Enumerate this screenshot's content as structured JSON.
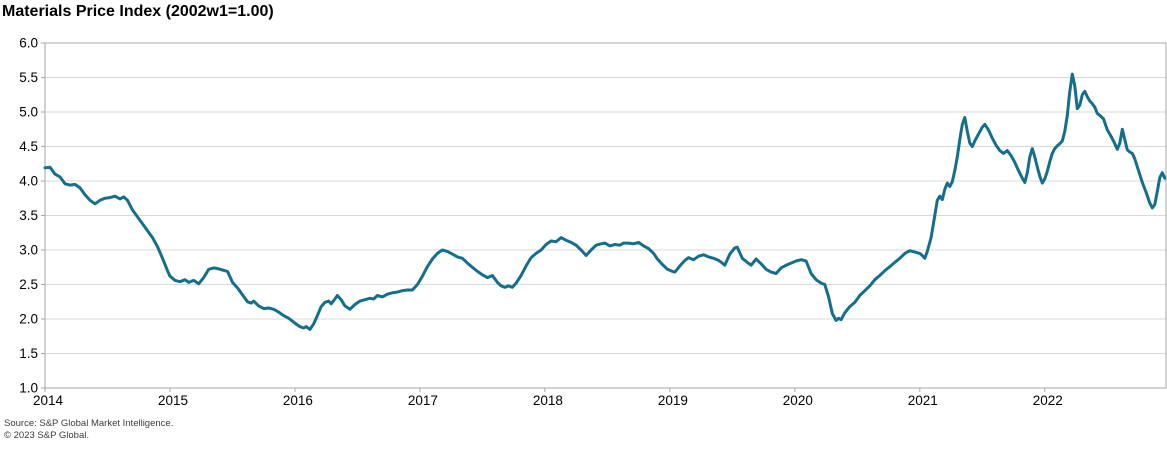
{
  "header": {
    "title": "Materials Price Index (2002w1=1.00)"
  },
  "footer": {
    "source": "Source: S&P Global Market Intelligence.",
    "copyright": "© 2023 S&P Global."
  },
  "colors": {
    "line": "#146e8c",
    "gridline": "#d9d9d9",
    "frame": "#a6a6a6",
    "tick_label": "#000000",
    "title": "#000000",
    "footnote": "#3d3d3d",
    "background": "#ffffff"
  },
  "chart_data": {
    "type": "line",
    "title": "Materials Price Index (2002w1=1.00)",
    "xlabel": "",
    "ylabel": "",
    "xlim": [
      2014.0,
      2022.97
    ],
    "ylim": [
      1.0,
      6.0
    ],
    "grid": "horizontal",
    "legend": "none",
    "x_ticks": [
      "2014",
      "2015",
      "2016",
      "2017",
      "2018",
      "2019",
      "2020",
      "2021",
      "2022"
    ],
    "x_tick_values": [
      2014,
      2015,
      2016,
      2017,
      2018,
      2019,
      2020,
      2021,
      2022
    ],
    "y_ticks": [
      "1.0",
      "1.5",
      "2.0",
      "2.5",
      "3.0",
      "3.5",
      "4.0",
      "4.5",
      "5.0",
      "5.5",
      "6.0"
    ],
    "y_tick_values": [
      1.0,
      1.5,
      2.0,
      2.5,
      3.0,
      3.5,
      4.0,
      4.5,
      5.0,
      5.5,
      6.0
    ],
    "series": [
      {
        "name": "Materials Price Index (2002w1=1.00)",
        "x": [
          2014.0,
          2014.04,
          2014.08,
          2014.12,
          2014.16,
          2014.2,
          2014.24,
          2014.28,
          2014.32,
          2014.36,
          2014.4,
          2014.44,
          2014.48,
          2014.52,
          2014.56,
          2014.6,
          2014.63,
          2014.66,
          2014.7,
          2014.74,
          2014.78,
          2014.82,
          2014.86,
          2014.9,
          2014.94,
          2014.98,
          2015.0,
          2015.04,
          2015.08,
          2015.12,
          2015.15,
          2015.19,
          2015.23,
          2015.27,
          2015.31,
          2015.35,
          2015.38,
          2015.42,
          2015.46,
          2015.5,
          2015.54,
          2015.58,
          2015.62,
          2015.65,
          2015.67,
          2015.71,
          2015.75,
          2015.79,
          2015.83,
          2015.87,
          2015.91,
          2015.95,
          2016.0,
          2016.04,
          2016.07,
          2016.09,
          2016.12,
          2016.15,
          2016.18,
          2016.21,
          2016.24,
          2016.27,
          2016.29,
          2016.32,
          2016.34,
          2016.37,
          2016.4,
          2016.44,
          2016.48,
          2016.52,
          2016.56,
          2016.6,
          2016.63,
          2016.66,
          2016.7,
          2016.74,
          2016.78,
          2016.82,
          2016.86,
          2016.9,
          2016.94,
          2016.98,
          2017.02,
          2017.06,
          2017.1,
          2017.14,
          2017.18,
          2017.22,
          2017.26,
          2017.3,
          2017.34,
          2017.38,
          2017.42,
          2017.46,
          2017.5,
          2017.54,
          2017.58,
          2017.62,
          2017.65,
          2017.68,
          2017.71,
          2017.74,
          2017.77,
          2017.81,
          2017.85,
          2017.89,
          2017.93,
          2017.97,
          2018.01,
          2018.05,
          2018.09,
          2018.13,
          2018.17,
          2018.21,
          2018.25,
          2018.29,
          2018.33,
          2018.37,
          2018.41,
          2018.45,
          2018.48,
          2018.52,
          2018.56,
          2018.6,
          2018.63,
          2018.67,
          2018.71,
          2018.75,
          2018.79,
          2018.83,
          2018.87,
          2018.9,
          2018.94,
          2018.98,
          2019.02,
          2019.04,
          2019.08,
          2019.12,
          2019.15,
          2019.19,
          2019.23,
          2019.27,
          2019.31,
          2019.35,
          2019.39,
          2019.42,
          2019.44,
          2019.48,
          2019.52,
          2019.54,
          2019.58,
          2019.62,
          2019.65,
          2019.69,
          2019.73,
          2019.77,
          2019.81,
          2019.85,
          2019.89,
          2019.93,
          2019.97,
          2020.01,
          2020.05,
          2020.09,
          2020.13,
          2020.17,
          2020.21,
          2020.24,
          2020.27,
          2020.3,
          2020.33,
          2020.35,
          2020.37,
          2020.4,
          2020.44,
          2020.48,
          2020.52,
          2020.56,
          2020.6,
          2020.64,
          2020.68,
          2020.72,
          2020.76,
          2020.8,
          2020.84,
          2020.88,
          2020.92,
          2020.96,
          2021.0,
          2021.02,
          2021.04,
          2021.06,
          2021.09,
          2021.12,
          2021.14,
          2021.16,
          2021.18,
          2021.2,
          2021.22,
          2021.24,
          2021.26,
          2021.28,
          2021.3,
          2021.32,
          2021.34,
          2021.36,
          2021.38,
          2021.4,
          2021.42,
          2021.44,
          2021.47,
          2021.5,
          2021.52,
          2021.55,
          2021.58,
          2021.61,
          2021.64,
          2021.67,
          2021.7,
          2021.73,
          2021.76,
          2021.79,
          2021.82,
          2021.84,
          2021.86,
          2021.88,
          2021.9,
          2021.92,
          2021.94,
          2021.96,
          2021.98,
          2022.0,
          2022.02,
          2022.04,
          2022.06,
          2022.08,
          2022.1,
          2022.12,
          2022.14,
          2022.16,
          2022.18,
          2022.2,
          2022.22,
          2022.24,
          2022.26,
          2022.28,
          2022.3,
          2022.32,
          2022.34,
          2022.36,
          2022.38,
          2022.4,
          2022.42,
          2022.44,
          2022.47,
          2022.5,
          2022.52,
          2022.55,
          2022.58,
          2022.6,
          2022.62,
          2022.64,
          2022.66,
          2022.68,
          2022.7,
          2022.72,
          2022.75,
          2022.78,
          2022.81,
          2022.84,
          2022.86,
          2022.88,
          2022.9,
          2022.92,
          2022.94,
          2022.96
        ],
        "y": [
          4.19,
          4.2,
          4.1,
          4.06,
          3.96,
          3.94,
          3.95,
          3.9,
          3.8,
          3.72,
          3.67,
          3.72,
          3.75,
          3.76,
          3.78,
          3.74,
          3.77,
          3.72,
          3.58,
          3.48,
          3.38,
          3.28,
          3.18,
          3.05,
          2.88,
          2.7,
          2.62,
          2.56,
          2.54,
          2.57,
          2.53,
          2.56,
          2.51,
          2.6,
          2.72,
          2.74,
          2.73,
          2.71,
          2.69,
          2.53,
          2.45,
          2.35,
          2.25,
          2.23,
          2.26,
          2.19,
          2.15,
          2.16,
          2.14,
          2.1,
          2.05,
          2.01,
          1.94,
          1.89,
          1.87,
          1.89,
          1.85,
          1.93,
          2.05,
          2.18,
          2.24,
          2.26,
          2.22,
          2.29,
          2.34,
          2.28,
          2.19,
          2.14,
          2.21,
          2.26,
          2.28,
          2.3,
          2.29,
          2.34,
          2.32,
          2.36,
          2.38,
          2.39,
          2.41,
          2.42,
          2.42,
          2.5,
          2.62,
          2.76,
          2.87,
          2.95,
          3.0,
          2.98,
          2.94,
          2.9,
          2.88,
          2.81,
          2.75,
          2.69,
          2.64,
          2.6,
          2.63,
          2.53,
          2.48,
          2.46,
          2.48,
          2.46,
          2.52,
          2.63,
          2.77,
          2.89,
          2.95,
          3.0,
          3.08,
          3.13,
          3.12,
          3.18,
          3.14,
          3.11,
          3.07,
          3.0,
          2.92,
          3.0,
          3.07,
          3.09,
          3.1,
          3.06,
          3.08,
          3.07,
          3.1,
          3.1,
          3.09,
          3.11,
          3.06,
          3.02,
          2.95,
          2.87,
          2.79,
          2.72,
          2.69,
          2.68,
          2.77,
          2.85,
          2.89,
          2.86,
          2.91,
          2.93,
          2.9,
          2.88,
          2.85,
          2.81,
          2.78,
          2.94,
          3.03,
          3.04,
          2.88,
          2.82,
          2.78,
          2.87,
          2.8,
          2.72,
          2.68,
          2.66,
          2.74,
          2.78,
          2.81,
          2.84,
          2.86,
          2.84,
          2.66,
          2.57,
          2.52,
          2.5,
          2.32,
          2.08,
          1.98,
          2.01,
          1.99,
          2.09,
          2.18,
          2.24,
          2.34,
          2.41,
          2.48,
          2.57,
          2.63,
          2.7,
          2.76,
          2.82,
          2.88,
          2.95,
          2.99,
          2.97,
          2.95,
          2.92,
          2.88,
          2.98,
          3.18,
          3.5,
          3.72,
          3.78,
          3.73,
          3.88,
          3.97,
          3.92,
          3.99,
          4.15,
          4.35,
          4.6,
          4.82,
          4.92,
          4.72,
          4.55,
          4.5,
          4.58,
          4.68,
          4.78,
          4.82,
          4.74,
          4.62,
          4.52,
          4.44,
          4.4,
          4.44,
          4.37,
          4.27,
          4.15,
          4.04,
          3.98,
          4.12,
          4.35,
          4.47,
          4.35,
          4.2,
          4.07,
          3.97,
          4.03,
          4.14,
          4.28,
          4.4,
          4.47,
          4.51,
          4.54,
          4.58,
          4.72,
          4.95,
          5.3,
          5.55,
          5.38,
          5.05,
          5.1,
          5.25,
          5.3,
          5.22,
          5.16,
          5.12,
          5.07,
          4.98,
          4.95,
          4.9,
          4.74,
          4.68,
          4.58,
          4.46,
          4.55,
          4.75,
          4.6,
          4.45,
          4.42,
          4.4,
          4.32,
          4.15,
          3.98,
          3.84,
          3.68,
          3.61,
          3.66,
          3.85,
          4.05,
          4.12,
          4.04
        ]
      }
    ]
  }
}
